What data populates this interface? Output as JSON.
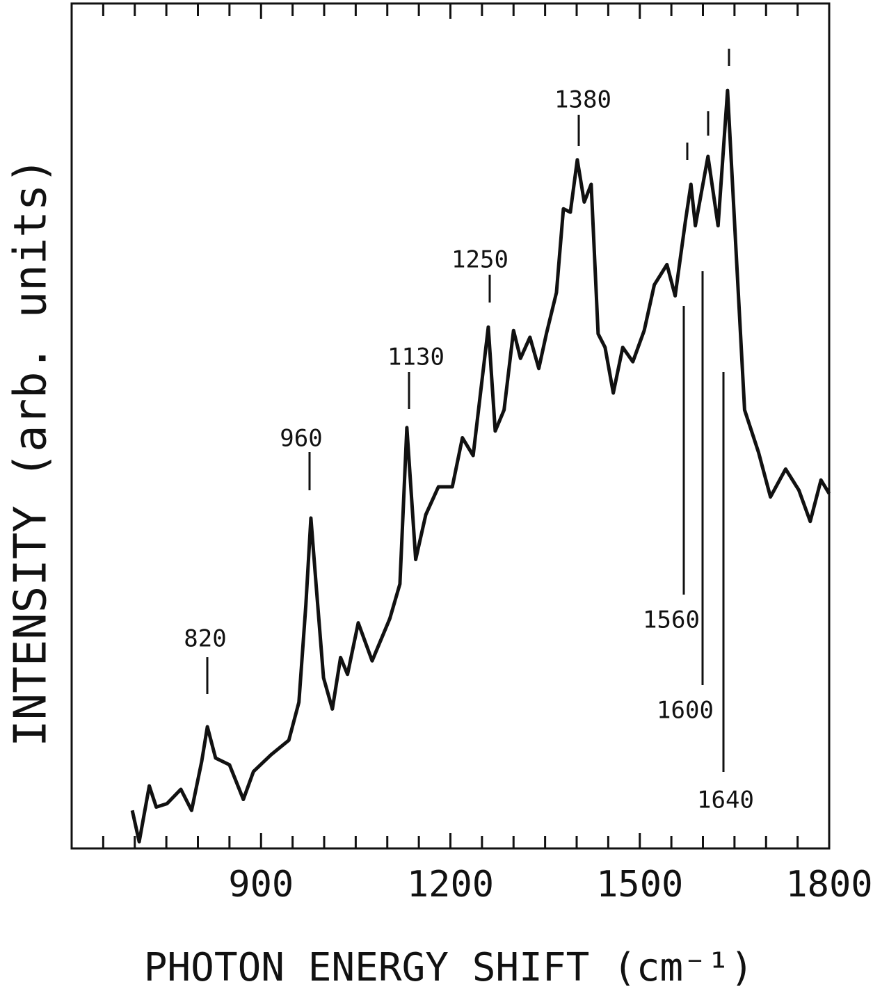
{
  "chart_data": {
    "type": "line",
    "xlabel": "PHOTON ENERGY SHIFT (cm⁻¹)",
    "ylabel": "INTENSITY (arb. units)",
    "xlim": [
      600,
      1800
    ],
    "ylim": [
      0,
      100
    ],
    "xticks": [
      900,
      1200,
      1500,
      1800
    ],
    "x_minor_ticks": [
      650,
      700,
      750,
      800,
      850,
      950,
      1000,
      1050,
      1100,
      1150,
      1250,
      1300,
      1350,
      1400,
      1450,
      1550,
      1600,
      1650,
      1700,
      1750
    ],
    "x": [
      696,
      707,
      723,
      734,
      751,
      773,
      790,
      806,
      815,
      828,
      850,
      872,
      888,
      916,
      944,
      960,
      971,
      979,
      988,
      999,
      1013,
      1026,
      1037,
      1054,
      1076,
      1104,
      1120,
      1131,
      1145,
      1161,
      1181,
      1203,
      1219,
      1236,
      1260,
      1271,
      1285,
      1300,
      1311,
      1326,
      1340,
      1352,
      1368,
      1379,
      1390,
      1401,
      1412,
      1423,
      1434,
      1445,
      1458,
      1473,
      1489,
      1507,
      1523,
      1543,
      1556,
      1572,
      1581,
      1588,
      1608,
      1624,
      1639,
      1653,
      1666,
      1688,
      1707,
      1731,
      1752,
      1770,
      1787,
      1800
    ],
    "series": [
      {
        "color": "#111111",
        "values": [
          4.5,
          0.8,
          7.4,
          4.9,
          5.3,
          7.0,
          4.5,
          10.3,
          14.4,
          10.7,
          9.9,
          5.8,
          9.1,
          11.1,
          12.8,
          17.3,
          28.8,
          39.1,
          30.5,
          20.2,
          16.5,
          22.6,
          20.6,
          26.7,
          22.2,
          27.2,
          31.3,
          49.8,
          34.2,
          39.5,
          42.8,
          42.8,
          48.6,
          46.5,
          61.7,
          49.4,
          51.9,
          61.3,
          58.0,
          60.5,
          56.8,
          60.9,
          65.8,
          75.7,
          75.3,
          81.5,
          76.5,
          78.6,
          60.9,
          59.3,
          53.9,
          59.3,
          57.6,
          61.3,
          66.7,
          69.1,
          65.4,
          74.1,
          78.6,
          73.7,
          81.9,
          73.7,
          89.7,
          70.0,
          51.9,
          46.9,
          41.6,
          44.9,
          42.4,
          38.7,
          43.6,
          42.0
        ]
      }
    ],
    "annotations": [
      "820",
      "960",
      "1130",
      "1250",
      "1380",
      "1560",
      "1600",
      "1640"
    ]
  }
}
